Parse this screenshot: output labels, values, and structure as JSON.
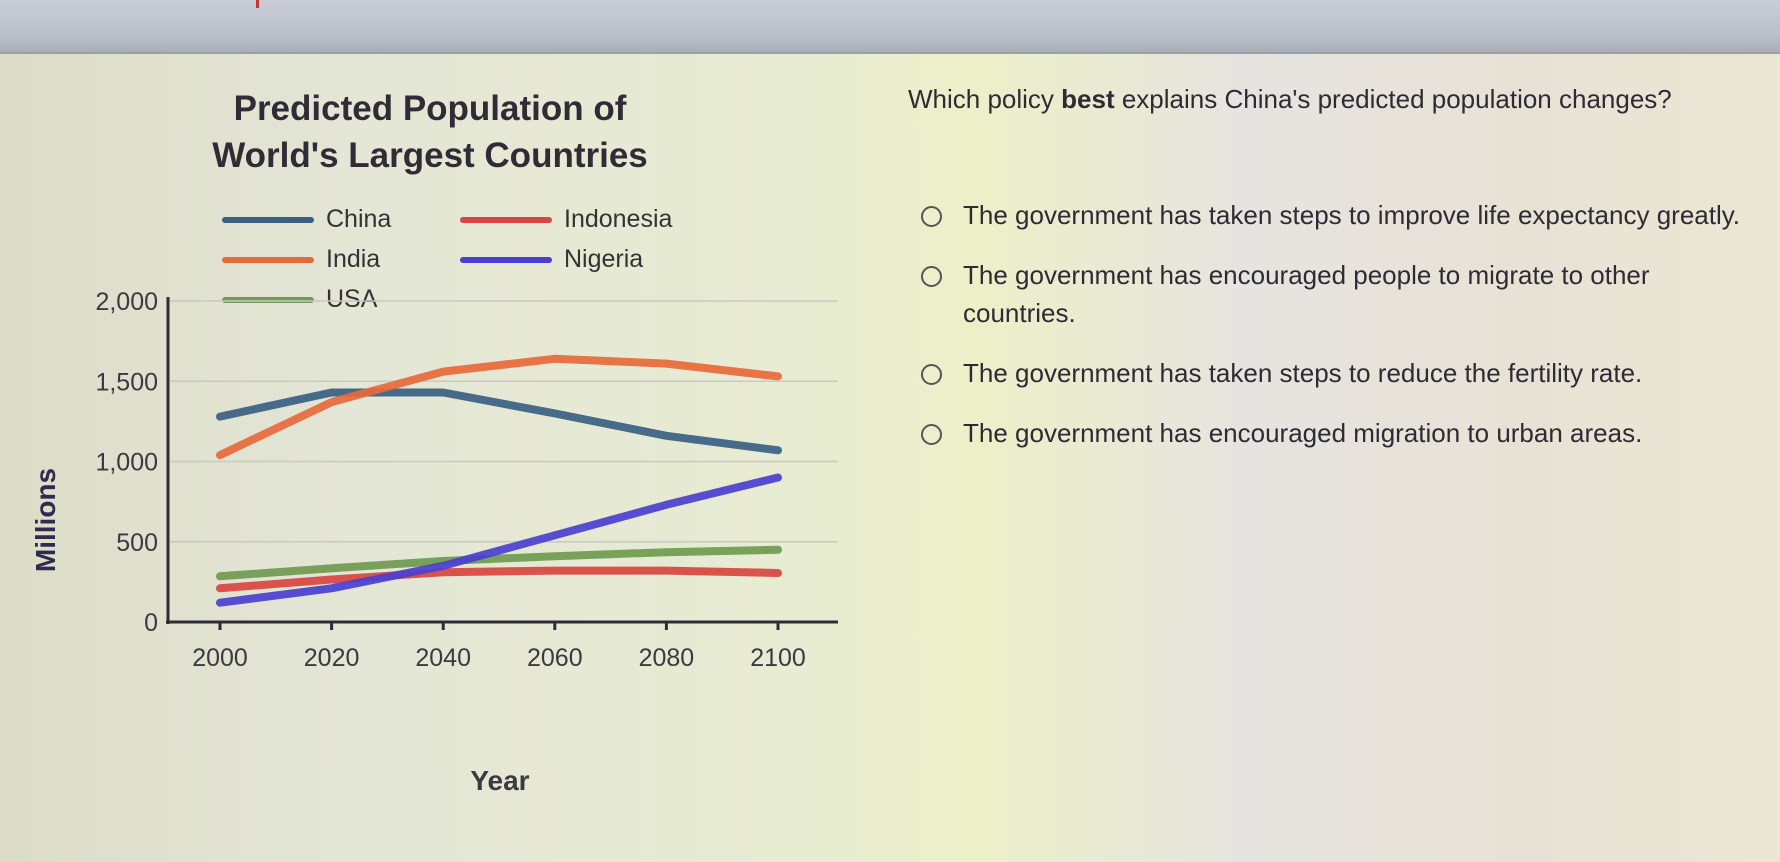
{
  "question": {
    "prefix": "Which policy ",
    "emphasis": "best",
    "suffix": " explains China's predicted population changes?"
  },
  "options": [
    {
      "label": "The government has taken steps to improve life expectancy greatly.",
      "selected": false
    },
    {
      "label": "The government has encouraged people to migrate to other countries.",
      "selected": false
    },
    {
      "label": "The government has taken steps to reduce the fertility rate.",
      "selected": false
    },
    {
      "label": "The government has encouraged migration to urban areas.",
      "selected": false
    }
  ],
  "chart_data": {
    "type": "line",
    "title": "Predicted Population of World's Largest Countries",
    "title_lines": [
      "Predicted Population of",
      "World's Largest Countries"
    ],
    "xlabel": "Year",
    "ylabel": "Millions",
    "x": [
      2000,
      2020,
      2040,
      2060,
      2080,
      2100
    ],
    "x_tick_labels": [
      "2000",
      "2020",
      "2040",
      "2060",
      "2080",
      "2100"
    ],
    "ylim": [
      0,
      2000
    ],
    "y_ticks": [
      0,
      500,
      1000,
      1500,
      2000
    ],
    "y_tick_labels": [
      "0",
      "500",
      "1,000",
      "1,500",
      "2,000"
    ],
    "grid": true,
    "legend_position": "top",
    "series": [
      {
        "name": "China",
        "color": "#3a5f82",
        "values": [
          1280,
          1430,
          1430,
          1300,
          1160,
          1070
        ]
      },
      {
        "name": "India",
        "color": "#e8693a",
        "values": [
          1040,
          1370,
          1560,
          1640,
          1610,
          1530
        ]
      },
      {
        "name": "USA",
        "color": "#6f9a4f",
        "values": [
          285,
          335,
          380,
          410,
          435,
          450
        ]
      },
      {
        "name": "Indonesia",
        "color": "#d9453f",
        "values": [
          210,
          265,
          310,
          320,
          320,
          305
        ]
      },
      {
        "name": "Nigeria",
        "color": "#4a3fd0",
        "values": [
          120,
          210,
          350,
          540,
          730,
          900
        ]
      }
    ]
  },
  "legend": {
    "china": "China",
    "india": "India",
    "usa": "USA",
    "indonesia": "Indonesia",
    "nigeria": "Nigeria"
  }
}
